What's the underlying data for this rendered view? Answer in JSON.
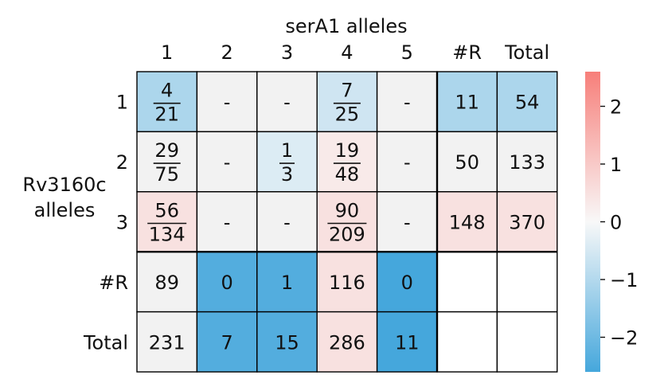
{
  "chart_data": {
    "type": "heatmap",
    "xlabel": "serA1 alleles",
    "ylabel": "Rv3160c alleles",
    "x_ticks": [
      "1",
      "2",
      "3",
      "4",
      "5",
      "#R",
      "Total"
    ],
    "y_ticks": [
      "1",
      "2",
      "3",
      "#R",
      "Total"
    ],
    "cells": [
      [
        {
          "num": "4",
          "den": "21",
          "score": -1.1
        },
        {
          "text": "-",
          "score": 0
        },
        {
          "text": "-",
          "score": 0
        },
        {
          "num": "7",
          "den": "25",
          "score": -0.6
        },
        {
          "text": "-",
          "score": 0
        },
        {
          "text": "11",
          "score": -1.1
        },
        {
          "text": "54",
          "score": -1.1
        }
      ],
      [
        {
          "num": "29",
          "den": "75",
          "score": 0
        },
        {
          "text": "-",
          "score": 0
        },
        {
          "num": "1",
          "den": "3",
          "score": -0.4
        },
        {
          "num": "19",
          "den": "48",
          "score": 0.3
        },
        {
          "text": "-",
          "score": 0
        },
        {
          "text": "50",
          "score": 0
        },
        {
          "text": "133",
          "score": 0
        }
      ],
      [
        {
          "num": "56",
          "den": "134",
          "score": 0.5
        },
        {
          "text": "-",
          "score": 0
        },
        {
          "text": "-",
          "score": 0
        },
        {
          "num": "90",
          "den": "209",
          "score": 0.5
        },
        {
          "text": "-",
          "score": 0
        },
        {
          "text": "148",
          "score": 0.5
        },
        {
          "text": "370",
          "score": 0.5
        }
      ],
      [
        {
          "text": "89",
          "score": 0
        },
        {
          "text": "0",
          "score": -2.4
        },
        {
          "text": "1",
          "score": -2.4
        },
        {
          "text": "116",
          "score": 0.5
        },
        {
          "text": "0",
          "score": -2.6
        },
        {
          "text": "",
          "score": null
        },
        {
          "text": "",
          "score": null
        }
      ],
      [
        {
          "text": "231",
          "score": 0
        },
        {
          "text": "7",
          "score": -2.4
        },
        {
          "text": "15",
          "score": -2.4
        },
        {
          "text": "286",
          "score": 0.5
        },
        {
          "text": "11",
          "score": -2.6
        },
        {
          "text": "",
          "score": null
        },
        {
          "text": "",
          "score": null
        }
      ]
    ],
    "colorbar": {
      "min": -2.6,
      "max": 2.6,
      "ticks": [
        2,
        1,
        0,
        -1,
        -2
      ],
      "tick_labels": [
        "2",
        "1",
        "0",
        "−1",
        "−2"
      ],
      "color_low": "#45a7dc",
      "color_mid": "#f8f8f8",
      "color_high": "#f77f7a"
    },
    "neutral_color": "#f2f2f2",
    "grid": true,
    "legend": "colorbar-right"
  }
}
